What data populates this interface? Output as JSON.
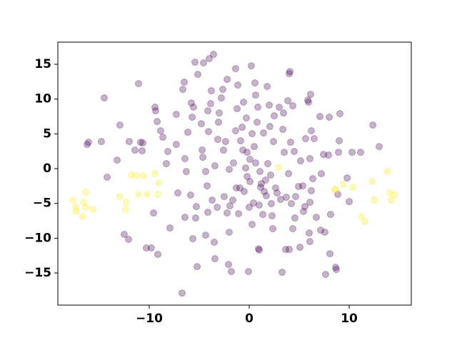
{
  "chart_data": {
    "type": "scatter",
    "xlim": [
      -19.14,
      16.21
    ],
    "ylim": [
      -19.62,
      18.19
    ],
    "xticks": [
      {
        "value": -10,
        "label": "−10"
      },
      0,
      10
    ],
    "yticks": [
      {
        "value": -15,
        "label": "−15"
      },
      {
        "value": -10,
        "label": "−10"
      },
      {
        "value": -5,
        "label": "−5"
      },
      0,
      5,
      10,
      15
    ],
    "grid": false,
    "series": [
      {
        "color": "#440154",
        "x": [
          -16.07,
          -16.21,
          -14.79,
          -14.5,
          -14.21,
          -13.21,
          -12.93,
          -12.5,
          -12.07,
          -12,
          -11.43,
          -11.07,
          -10.86,
          -10.71,
          -10.64,
          -10.29,
          -9.79,
          -9.57,
          -9.43,
          -9.36,
          -9.21,
          -9.14,
          -8.86,
          -8.64,
          -8.29,
          -8.14,
          -7.93,
          -7.29,
          -7.29,
          -7.14,
          -6.71,
          -6.64,
          -6.5,
          -6.43,
          -6.43,
          -6.29,
          -6.14,
          -5.86,
          -5.79,
          -5.64,
          -5.43,
          -5.29,
          -5.21,
          -5.14,
          -5.36,
          -5.71,
          -5.57,
          -4.79,
          -4.57,
          -4.71,
          -4.64,
          -4.36,
          -4.36,
          -4.21,
          -4.14,
          -4.14,
          -4.07,
          -4,
          -3.86,
          -3.57,
          -3.5,
          -3.43,
          -3.43,
          -3.79,
          -3.71,
          -3.21,
          -3.07,
          -3.14,
          -3,
          -2.79,
          -2.64,
          -2.57,
          -2.5,
          -2.36,
          -2.21,
          -2.21,
          -2.07,
          -2,
          -2,
          -1.93,
          -1.79,
          -1.64,
          -1.57,
          -1.36,
          -1.36,
          -1.29,
          -1.21,
          -1.14,
          -1.07,
          -0.93,
          -0.86,
          -0.71,
          -0.64,
          -0.57,
          -0.5,
          -0.36,
          -0.29,
          -0.21,
          -0.21,
          -0.07,
          0,
          0.07,
          0.07,
          0.21,
          0.29,
          0.29,
          0.43,
          0.5,
          0.57,
          0.64,
          0.64,
          0.79,
          0.86,
          0.93,
          1,
          1,
          1.07,
          1.14,
          1.21,
          1.36,
          1.43,
          1.5,
          1.64,
          1.71,
          1.79,
          1.86,
          2,
          2.07,
          2.14,
          2.21,
          2.29,
          2.36,
          2.43,
          2.5,
          2.64,
          2.79,
          3,
          3.14,
          3.29,
          3.36,
          3.43,
          3.5,
          3.64,
          3.71,
          3.86,
          3.93,
          4,
          4,
          4.07,
          4.14,
          4.21,
          4.36,
          4.36,
          4.5,
          4.57,
          4.64,
          4.93,
          5.07,
          5.14,
          5.36,
          5.43,
          5.57,
          5.64,
          5.86,
          5.93,
          6,
          6.07,
          6.07,
          6.07,
          6.14,
          6.21,
          6.21,
          6.36,
          6.5,
          6.71,
          7.07,
          7.14,
          7.21,
          7.43,
          7.57,
          7.64,
          7.93,
          8,
          8.07,
          8.14,
          8.64,
          8.71,
          8.86,
          8.93,
          9,
          9.07,
          9.79,
          10,
          10.29,
          11.14,
          12.36,
          13
        ],
        "values": [
          3.8,
          3.49,
          3.9,
          10.17,
          -1.23,
          1.23,
          6.27,
          -9.45,
          -10.17,
          3.9,
          2.67,
          12.23,
          3.8,
          2.57,
          3.7,
          -11.4,
          -11.4,
          -6.37,
          8.84,
          8.32,
          6.78,
          -12.33,
          5.45,
          4.52,
          0.72,
          2.47,
          -8.53,
          7.81,
          3.49,
          -3.49,
          -17.88,
          11.4,
          12.43,
          -6.99,
          1.44,
          -0.41,
          5.24,
          -3.8,
          9.45,
          -10.07,
          15.31,
          -5.45,
          -14.08,
          13.56,
          -7.09,
          7.4,
          8.84,
          6.47,
          15.21,
          2.67,
          1.64,
          -9.56,
          -0.41,
          -2.47,
          8.32,
          -6.27,
          5.34,
          15.82,
          9.35,
          16.44,
          -10.58,
          -12.95,
          0.41,
          11.2,
          -4.52,
          -5.55,
          6.68,
          4.21,
          8.01,
          10.17,
          11.4,
          2.67,
          -4.01,
          3.9,
          12.84,
          -6.37,
          -13.77,
          -9.14,
          -0.1,
          -5.34,
          -14.79,
          -4.52,
          0.82,
          14.38,
          5.45,
          -2.77,
          8.63,
          12.02,
          -6.47,
          -2.77,
          4.01,
          5.96,
          2.67,
          9.56,
          -3.29,
          0.1,
          7.29,
          2.36,
          -1.13,
          -14.79,
          -5.55,
          1.34,
          -1.85,
          14.79,
          5.03,
          -8.01,
          -4.93,
          3.18,
          12.33,
          10.58,
          0.82,
          6.68,
          8.84,
          -11.51,
          -11.71,
          -5.24,
          -0.41,
          -2.67,
          -2.16,
          -6.58,
          5.14,
          -3.29,
          -1.64,
          -3.9,
          11.82,
          0.72,
          9.14,
          6.06,
          -0.92,
          -5.03,
          -6.78,
          -8.63,
          3.9,
          7.6,
          -2.77,
          -3.49,
          8.84,
          -4.42,
          -14.9,
          5.65,
          8.01,
          2.36,
          -11.61,
          -4.11,
          9.76,
          -0.72,
          13.66,
          -11.61,
          13.97,
          3.8,
          -5.03,
          -8.63,
          9.04,
          2.47,
          -7.09,
          -4.01,
          -2.57,
          -11.3,
          1.13,
          -2.47,
          -6.16,
          -5.45,
          4.32,
          9.86,
          9.56,
          -9.25,
          1.44,
          -10.48,
          -4.83,
          10.68,
          5.45,
          -3.18,
          -1.44,
          4.32,
          -6.99,
          7.5,
          -8.84,
          -0.72,
          2.05,
          -9.14,
          -15.21,
          1.95,
          7.4,
          -12.23,
          -6.58,
          -14.18,
          -14.49,
          -3.7,
          2.36,
          4.01,
          7.91,
          -1.34,
          -4.73,
          2.36,
          2.36,
          6.27,
          3.18
        ]
      },
      {
        "color": "#fde725",
        "x": [
          -17.64,
          -17.36,
          -17.29,
          -16.57,
          -16.36,
          -16.64,
          -16.36,
          -15.64,
          -12.93,
          -12.36,
          -12.29,
          -11.79,
          -11.29,
          -11.07,
          -10.57,
          -10.21,
          -9.43,
          -9.07,
          -9.14,
          2.93,
          8.57,
          8.64,
          9.43,
          10.36,
          11.21,
          11.57,
          12.29,
          12.5,
          13.86,
          14.07,
          14.21,
          14.57
        ],
        "values": [
          -4.52,
          -5.55,
          -6.16,
          -4.83,
          -3.39,
          -6.88,
          -5.55,
          -5.86,
          -4.01,
          -5.86,
          -4.83,
          -0.92,
          -1.03,
          -3.7,
          -1.03,
          -3.7,
          -0.72,
          -2.05,
          -3.7,
          0.21,
          -2.98,
          -3.08,
          -2.26,
          -2.67,
          -6.88,
          -7.6,
          -1.85,
          -4.52,
          -0.41,
          -3.49,
          -4.52,
          -3.8
        ]
      }
    ]
  }
}
